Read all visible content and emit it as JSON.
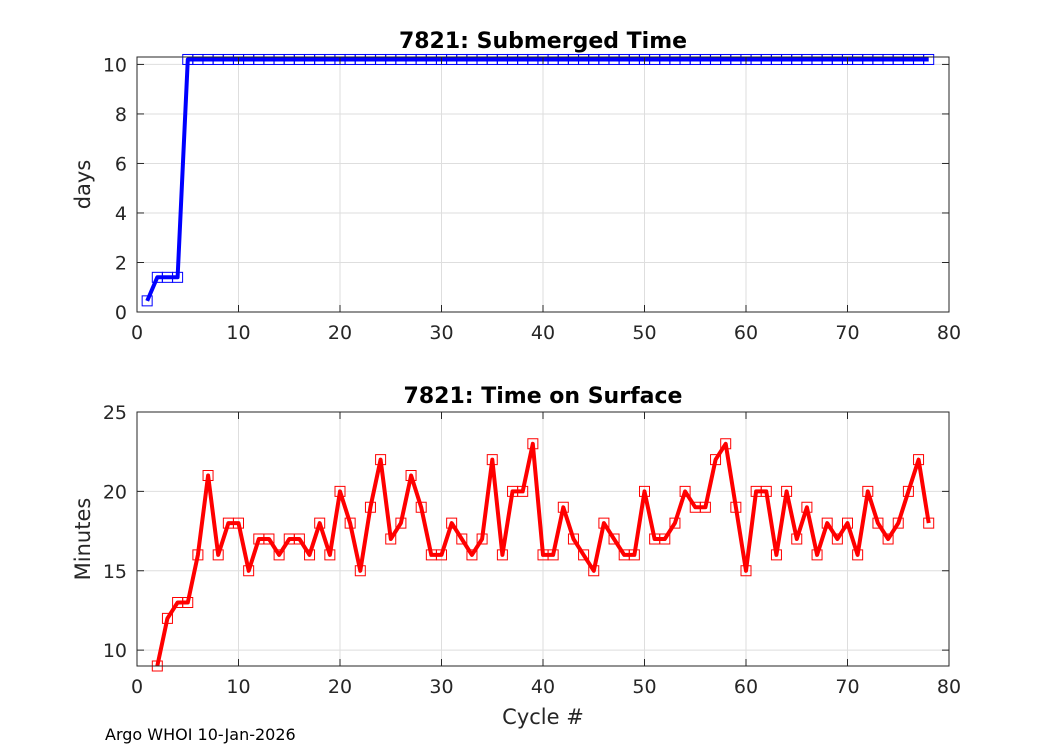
{
  "footer": "Argo WHOI 10-Jan-2026",
  "chart_data": [
    {
      "type": "line",
      "title": "7821: Submerged Time",
      "xlabel": "",
      "ylabel": "days",
      "xlim": [
        0,
        80
      ],
      "ylim": [
        0,
        10.3
      ],
      "xticks": [
        0,
        10,
        20,
        30,
        40,
        50,
        60,
        70,
        80
      ],
      "yticks": [
        0,
        2,
        4,
        6,
        8,
        10
      ],
      "grid": true,
      "series": [
        {
          "color": "#0000ff",
          "marker": "square",
          "x": [
            1,
            2,
            3,
            4,
            5,
            6,
            7,
            8,
            9,
            10,
            11,
            12,
            13,
            14,
            15,
            16,
            17,
            18,
            19,
            20,
            21,
            22,
            23,
            24,
            25,
            26,
            27,
            28,
            29,
            30,
            31,
            32,
            33,
            34,
            35,
            36,
            37,
            38,
            39,
            40,
            41,
            42,
            43,
            44,
            45,
            46,
            47,
            48,
            49,
            50,
            51,
            52,
            53,
            54,
            55,
            56,
            57,
            58,
            59,
            60,
            61,
            62,
            63,
            64,
            65,
            66,
            67,
            68,
            69,
            70,
            71,
            72,
            73,
            74,
            75,
            76,
            77,
            78
          ],
          "values": [
            0.45,
            1.4,
            1.4,
            1.4,
            10.2,
            10.2,
            10.2,
            10.2,
            10.2,
            10.2,
            10.2,
            10.2,
            10.2,
            10.2,
            10.2,
            10.2,
            10.2,
            10.2,
            10.2,
            10.2,
            10.2,
            10.2,
            10.2,
            10.2,
            10.2,
            10.2,
            10.2,
            10.2,
            10.2,
            10.2,
            10.2,
            10.2,
            10.2,
            10.2,
            10.2,
            10.2,
            10.2,
            10.2,
            10.2,
            10.2,
            10.2,
            10.2,
            10.2,
            10.2,
            10.2,
            10.2,
            10.2,
            10.2,
            10.2,
            10.2,
            10.2,
            10.2,
            10.2,
            10.2,
            10.2,
            10.2,
            10.2,
            10.2,
            10.2,
            10.2,
            10.2,
            10.2,
            10.2,
            10.2,
            10.2,
            10.2,
            10.2,
            10.2,
            10.2,
            10.2,
            10.2,
            10.2,
            10.2,
            10.2,
            10.2,
            10.2,
            10.2,
            10.2
          ]
        }
      ]
    },
    {
      "type": "line",
      "title": "7821: Time on Surface",
      "xlabel": "Cycle #",
      "ylabel": "Minutes",
      "xlim": [
        0,
        80
      ],
      "ylim": [
        9,
        25
      ],
      "xticks": [
        0,
        10,
        20,
        30,
        40,
        50,
        60,
        70,
        80
      ],
      "yticks": [
        10,
        15,
        20,
        25
      ],
      "grid": true,
      "series": [
        {
          "color": "#ff0000",
          "marker": "square",
          "x": [
            2,
            3,
            4,
            5,
            6,
            7,
            8,
            9,
            10,
            11,
            12,
            13,
            14,
            15,
            16,
            17,
            18,
            19,
            20,
            21,
            22,
            23,
            24,
            25,
            26,
            27,
            28,
            29,
            30,
            31,
            32,
            33,
            34,
            35,
            36,
            37,
            38,
            39,
            40,
            41,
            42,
            43,
            44,
            45,
            46,
            47,
            48,
            49,
            50,
            51,
            52,
            53,
            54,
            55,
            56,
            57,
            58,
            59,
            60,
            61,
            62,
            63,
            64,
            65,
            66,
            67,
            68,
            69,
            70,
            71,
            72,
            73,
            74,
            75,
            76,
            77,
            78
          ],
          "values": [
            9,
            12,
            13,
            13,
            16,
            21,
            16,
            18,
            18,
            15,
            17,
            17,
            16,
            17,
            17,
            16,
            18,
            16,
            20,
            18,
            15,
            19,
            22,
            17,
            18,
            21,
            19,
            16,
            16,
            18,
            17,
            16,
            17,
            22,
            16,
            20,
            20,
            23,
            16,
            16,
            19,
            17,
            16,
            15,
            18,
            17,
            16,
            16,
            20,
            17,
            17,
            18,
            20,
            19,
            19,
            22,
            23,
            19,
            15,
            20,
            20,
            16,
            20,
            17,
            19,
            16,
            18,
            17,
            18,
            16,
            20,
            18,
            17,
            18,
            20,
            22,
            18
          ]
        }
      ]
    }
  ]
}
